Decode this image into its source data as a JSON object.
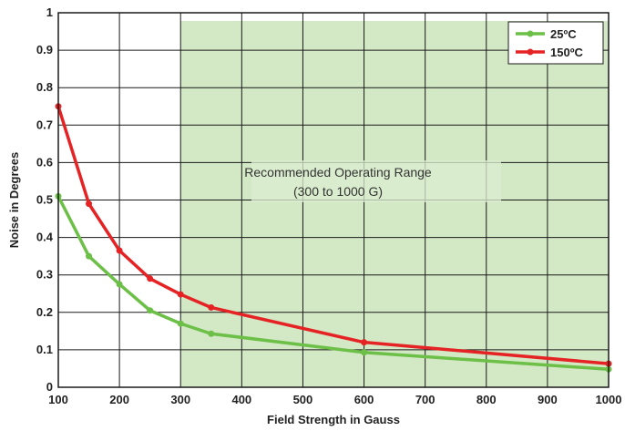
{
  "chart_data": {
    "type": "line",
    "xlabel": "Field Strength in Gauss",
    "ylabel": "Noise in Degrees",
    "xlim": [
      100,
      1000
    ],
    "ylim": [
      0,
      1
    ],
    "x_ticks": [
      "100",
      "200",
      "300",
      "400",
      "500",
      "600",
      "700",
      "800",
      "900",
      "1000"
    ],
    "y_ticks": [
      "0",
      "0.1",
      "0.2",
      "0.3",
      "0.4",
      "0.5",
      "0.6",
      "0.7",
      "0.8",
      "0.9",
      "1"
    ],
    "grid": true,
    "legend_position": "top-right",
    "shaded_region": {
      "x_range": [
        300,
        1000
      ],
      "label_line1": "Recommended Operating Range",
      "label_line2": "(300 to 1000 G)",
      "color": "#d3e8c5"
    },
    "series": [
      {
        "name": "25ºC",
        "color": "#6cbf47",
        "x": [
          100,
          150,
          200,
          250,
          300,
          350,
          600,
          1000
        ],
        "y": [
          0.51,
          0.35,
          0.275,
          0.205,
          0.17,
          0.143,
          0.093,
          0.048
        ]
      },
      {
        "name": "150ºC",
        "color": "#e52325",
        "x": [
          100,
          150,
          200,
          250,
          300,
          350,
          600,
          1000
        ],
        "y": [
          0.75,
          0.49,
          0.365,
          0.29,
          0.248,
          0.213,
          0.12,
          0.063
        ]
      }
    ]
  }
}
